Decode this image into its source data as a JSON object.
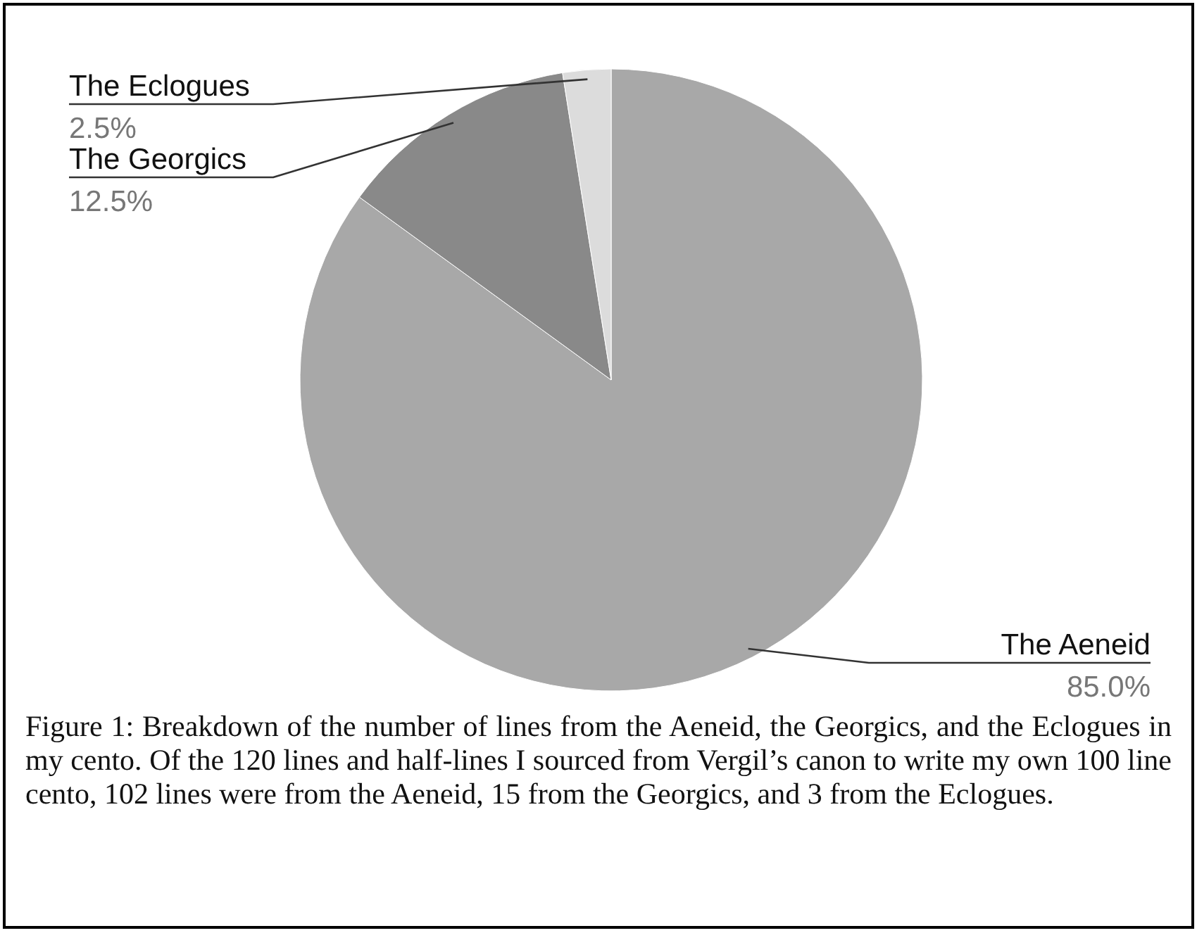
{
  "chart_data": {
    "type": "pie",
    "categories": [
      "The Aeneid",
      "The Georgics",
      "The Eclogues"
    ],
    "values": [
      85.0,
      12.5,
      2.5
    ],
    "colors": [
      "#a8a8a8",
      "#898989",
      "#dcdcdc"
    ],
    "value_labels": [
      "85.0%",
      "12.5%",
      "2.5%"
    ],
    "annotations": [
      "Figure 1: Breakdown of the number of lines from the Aeneid, the Georgics, and the Eclogues in my cento. Of the 120 lines and half-lines I sourced from Vergil’s canon to write my own 100 line cento, 102 lines were from the Aeneid, 15 from the Georgics, and 3 from the Eclogues."
    ]
  }
}
